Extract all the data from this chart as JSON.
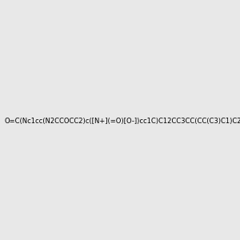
{
  "smiles": "O=C(Nc1cc(N2CCOCC2)c([N+](=O)[O-])cc1C)C12CC3CC(CC(C3)C1)C2",
  "image_size": 300,
  "background_color": "#e8e8e8"
}
